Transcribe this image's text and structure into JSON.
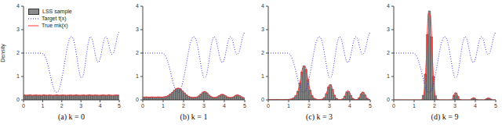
{
  "chart_data": [
    {
      "type": "histogram",
      "title": "(a) k = 0",
      "y_label": "Density",
      "legend": "top left",
      "name": "LSS sample",
      "color": "#8c8c8c",
      "bins": [
        0,
        0.1,
        0.2,
        0.3,
        0.4,
        0.5,
        0.6,
        0.7,
        0.8,
        0.9,
        1.0,
        1.1,
        1.2,
        1.3,
        1.4,
        1.5,
        1.6,
        1.7,
        1.8,
        1.9,
        2.0,
        2.1,
        2.2,
        2.3,
        2.4,
        2.5,
        2.6,
        2.7,
        2.8,
        2.9,
        3.0,
        3.1,
        3.2,
        3.3,
        3.4,
        3.5,
        3.6,
        3.7,
        3.8,
        3.9,
        4.0,
        4.1,
        4.2,
        4.3,
        4.4,
        4.5,
        4.6,
        4.7,
        4.8,
        4.9,
        5.0
      ],
      "counts": [
        0.21,
        0.19,
        0.2,
        0.22,
        0.18,
        0.2,
        0.21,
        0.19,
        0.2,
        0.18,
        0.22,
        0.2,
        0.19,
        0.21,
        0.2,
        0.18,
        0.2,
        0.22,
        0.19,
        0.2,
        0.21,
        0.2,
        0.18,
        0.2,
        0.21,
        0.19,
        0.2,
        0.22,
        0.2,
        0.18,
        0.2,
        0.21,
        0.19,
        0.2,
        0.22,
        0.2,
        0.19,
        0.21,
        0.2,
        0.18,
        0.2,
        0.21,
        0.2,
        0.19,
        0.22,
        0.2,
        0.18,
        0.2,
        0.21,
        0.2
      ],
      "x": [
        0,
        0.1,
        0.2,
        0.3,
        0.4,
        0.5,
        0.6,
        0.7,
        0.8,
        0.9,
        1.0,
        1.1,
        1.2,
        1.3,
        1.4,
        1.5,
        1.6,
        1.7,
        1.8,
        1.9,
        2.0,
        2.1,
        2.2,
        2.3,
        2.4,
        2.5,
        2.6,
        2.7,
        2.8,
        2.9,
        3.0,
        3.1,
        3.2,
        3.3,
        3.4,
        3.5,
        3.6,
        3.7,
        3.8,
        3.9,
        4.0,
        4.1,
        4.2,
        4.3,
        4.4,
        4.5,
        4.6,
        4.7,
        4.8,
        4.9,
        5.0
      ],
      "series": [
        {
          "name": "Target f(x)",
          "type": "line",
          "color": "#3333ff",
          "line_style": "dotted",
          "values": [
            2,
            2,
            2,
            2,
            2,
            2,
            2,
            2,
            2,
            2,
            1.98,
            1.9,
            1.7,
            1.4,
            1.05,
            0.7,
            0.45,
            0.32,
            0.35,
            0.55,
            0.9,
            1.35,
            1.85,
            2.3,
            2.6,
            2.7,
            2.6,
            2.25,
            1.75,
            1.25,
            0.95,
            1.0,
            1.4,
            2.0,
            2.5,
            2.7,
            2.55,
            2.15,
            1.75,
            1.6,
            1.75,
            2.15,
            2.55,
            2.7,
            2.55,
            2.2,
            1.95,
            2.0,
            2.3,
            2.7,
            2.9
          ]
        },
        {
          "name": "True mk(x)",
          "type": "line",
          "color": "#ff3333",
          "line_style": "solid",
          "values": [
            0.2,
            0.2,
            0.2,
            0.2,
            0.2,
            0.2,
            0.2,
            0.2,
            0.2,
            0.2,
            0.2,
            0.2,
            0.2,
            0.2,
            0.2,
            0.2,
            0.2,
            0.2,
            0.2,
            0.2,
            0.2,
            0.2,
            0.2,
            0.2,
            0.2,
            0.2,
            0.2,
            0.2,
            0.2,
            0.2,
            0.2,
            0.2,
            0.2,
            0.2,
            0.2,
            0.2,
            0.2,
            0.2,
            0.2,
            0.2,
            0.2,
            0.2,
            0.2,
            0.2,
            0.2,
            0.2,
            0.2,
            0.2,
            0.2,
            0.2,
            0.2
          ]
        }
      ],
      "xlim": [
        0,
        5
      ],
      "xticks": [
        0,
        1,
        2,
        3,
        4,
        5
      ],
      "ylim": [
        0,
        4
      ],
      "yticks": [
        0,
        1,
        2,
        3,
        4
      ]
    },
    {
      "type": "histogram",
      "title": "(b) k = 1",
      "color": "#8c8c8c",
      "bins": [
        0,
        0.1,
        0.2,
        0.3,
        0.4,
        0.5,
        0.6,
        0.7,
        0.8,
        0.9,
        1.0,
        1.1,
        1.2,
        1.3,
        1.4,
        1.5,
        1.6,
        1.7,
        1.8,
        1.9,
        2.0,
        2.1,
        2.2,
        2.3,
        2.4,
        2.5,
        2.6,
        2.7,
        2.8,
        2.9,
        3.0,
        3.1,
        3.2,
        3.3,
        3.4,
        3.5,
        3.6,
        3.7,
        3.8,
        3.9,
        4.0,
        4.1,
        4.2,
        4.3,
        4.4,
        4.5,
        4.6,
        4.7,
        4.8,
        4.9,
        5.0
      ],
      "counts": [
        0.11,
        0.13,
        0.12,
        0.1,
        0.13,
        0.12,
        0.11,
        0.13,
        0.12,
        0.11,
        0.13,
        0.15,
        0.18,
        0.25,
        0.32,
        0.41,
        0.48,
        0.5,
        0.46,
        0.38,
        0.29,
        0.21,
        0.15,
        0.12,
        0.1,
        0.11,
        0.12,
        0.17,
        0.25,
        0.33,
        0.36,
        0.3,
        0.21,
        0.14,
        0.11,
        0.1,
        0.13,
        0.18,
        0.23,
        0.23,
        0.18,
        0.13,
        0.1,
        0.1,
        0.13,
        0.19,
        0.21,
        0.18,
        0.13,
        0.09
      ],
      "x": [
        0,
        0.1,
        0.2,
        0.3,
        0.4,
        0.5,
        0.6,
        0.7,
        0.8,
        0.9,
        1.0,
        1.1,
        1.2,
        1.3,
        1.4,
        1.5,
        1.6,
        1.7,
        1.8,
        1.9,
        2.0,
        2.1,
        2.2,
        2.3,
        2.4,
        2.5,
        2.6,
        2.7,
        2.8,
        2.9,
        3.0,
        3.1,
        3.2,
        3.3,
        3.4,
        3.5,
        3.6,
        3.7,
        3.8,
        3.9,
        4.0,
        4.1,
        4.2,
        4.3,
        4.4,
        4.5,
        4.6,
        4.7,
        4.8,
        4.9,
        5.0
      ],
      "series": [
        {
          "type": "line",
          "color": "#3333ff",
          "line_style": "dotted",
          "values": [
            2,
            2,
            2,
            2,
            2,
            2,
            2,
            2,
            2,
            2,
            1.98,
            1.9,
            1.7,
            1.4,
            1.05,
            0.7,
            0.45,
            0.32,
            0.35,
            0.55,
            0.9,
            1.35,
            1.85,
            2.3,
            2.6,
            2.7,
            2.6,
            2.25,
            1.75,
            1.25,
            0.95,
            1.0,
            1.4,
            2.0,
            2.5,
            2.7,
            2.55,
            2.15,
            1.75,
            1.6,
            1.75,
            2.15,
            2.55,
            2.7,
            2.55,
            2.2,
            1.95,
            2.0,
            2.3,
            2.7,
            2.9
          ]
        },
        {
          "type": "line",
          "color": "#ff3333",
          "line_style": "solid",
          "values": [
            0.12,
            0.12,
            0.12,
            0.12,
            0.12,
            0.12,
            0.12,
            0.12,
            0.12,
            0.12,
            0.12,
            0.13,
            0.16,
            0.21,
            0.28,
            0.37,
            0.45,
            0.5,
            0.49,
            0.43,
            0.34,
            0.25,
            0.18,
            0.13,
            0.11,
            0.1,
            0.11,
            0.14,
            0.2,
            0.29,
            0.35,
            0.34,
            0.26,
            0.17,
            0.12,
            0.1,
            0.11,
            0.15,
            0.21,
            0.24,
            0.21,
            0.15,
            0.11,
            0.1,
            0.11,
            0.16,
            0.21,
            0.2,
            0.15,
            0.11,
            0.08
          ]
        }
      ],
      "xlim": [
        0,
        5
      ],
      "xticks": [
        0,
        1,
        2,
        3,
        4,
        5
      ],
      "ylim": [
        0,
        4
      ],
      "yticks": [
        0,
        1,
        2,
        3,
        4
      ]
    },
    {
      "type": "histogram",
      "title": "(c) k = 3",
      "color": "#8c8c8c",
      "bins": [
        0,
        0.1,
        0.2,
        0.3,
        0.4,
        0.5,
        0.6,
        0.7,
        0.8,
        0.9,
        1.0,
        1.1,
        1.2,
        1.3,
        1.4,
        1.5,
        1.6,
        1.7,
        1.8,
        1.9,
        2.0,
        2.1,
        2.2,
        2.3,
        2.4,
        2.5,
        2.6,
        2.7,
        2.8,
        2.9,
        3.0,
        3.1,
        3.2,
        3.3,
        3.4,
        3.5,
        3.6,
        3.7,
        3.8,
        3.9,
        4.0,
        4.1,
        4.2,
        4.3,
        4.4,
        4.5,
        4.6,
        4.7,
        4.8,
        4.9,
        5.0
      ],
      "counts": [
        0,
        0.01,
        0.01,
        0.01,
        0.02,
        0.01,
        0.01,
        0.01,
        0.02,
        0.01,
        0.02,
        0.04,
        0.09,
        0.18,
        0.37,
        0.72,
        1.2,
        1.45,
        1.3,
        0.85,
        0.42,
        0.18,
        0.07,
        0.03,
        0.01,
        0.01,
        0.03,
        0.1,
        0.27,
        0.55,
        0.65,
        0.45,
        0.2,
        0.06,
        0.02,
        0.01,
        0.04,
        0.16,
        0.34,
        0.35,
        0.19,
        0.06,
        0.02,
        0.01,
        0.09,
        0.25,
        0.33,
        0.21,
        0.07,
        0.02
      ],
      "x": [
        0,
        0.1,
        0.2,
        0.3,
        0.4,
        0.5,
        0.6,
        0.7,
        0.8,
        0.9,
        1.0,
        1.1,
        1.2,
        1.3,
        1.4,
        1.5,
        1.6,
        1.7,
        1.8,
        1.9,
        2.0,
        2.1,
        2.2,
        2.3,
        2.4,
        2.5,
        2.6,
        2.7,
        2.8,
        2.9,
        3.0,
        3.1,
        3.2,
        3.3,
        3.4,
        3.5,
        3.6,
        3.7,
        3.8,
        3.9,
        4.0,
        4.1,
        4.2,
        4.3,
        4.4,
        4.5,
        4.6,
        4.7,
        4.8,
        4.9,
        5.0
      ],
      "series": [
        {
          "type": "line",
          "color": "#3333ff",
          "line_style": "dotted",
          "values": [
            2,
            2,
            2,
            2,
            2,
            2,
            2,
            2,
            2,
            2,
            1.98,
            1.9,
            1.7,
            1.4,
            1.05,
            0.7,
            0.45,
            0.32,
            0.35,
            0.55,
            0.9,
            1.35,
            1.85,
            2.3,
            2.6,
            2.7,
            2.6,
            2.25,
            1.75,
            1.25,
            0.95,
            1.0,
            1.4,
            2.0,
            2.5,
            2.7,
            2.55,
            2.15,
            1.75,
            1.6,
            1.75,
            2.15,
            2.55,
            2.7,
            2.55,
            2.2,
            1.95,
            2.0,
            2.3,
            2.7,
            2.9
          ]
        },
        {
          "type": "line",
          "color": "#ff3333",
          "line_style": "solid",
          "values": [
            0.01,
            0.01,
            0.01,
            0.01,
            0.01,
            0.01,
            0.01,
            0.01,
            0.01,
            0.01,
            0.02,
            0.03,
            0.06,
            0.12,
            0.25,
            0.5,
            0.95,
            1.4,
            1.45,
            1.1,
            0.6,
            0.28,
            0.1,
            0.04,
            0.02,
            0.01,
            0.02,
            0.05,
            0.15,
            0.4,
            0.65,
            0.6,
            0.3,
            0.1,
            0.03,
            0.01,
            0.02,
            0.07,
            0.25,
            0.4,
            0.28,
            0.1,
            0.03,
            0.01,
            0.03,
            0.15,
            0.33,
            0.3,
            0.12,
            0.03,
            0.01
          ]
        }
      ],
      "xlim": [
        0,
        5
      ],
      "xticks": [
        0,
        1,
        2,
        3,
        4,
        5
      ],
      "ylim": [
        0,
        4
      ],
      "yticks": [
        0,
        1,
        2,
        3,
        4
      ]
    },
    {
      "type": "histogram",
      "title": "(d) k = 9",
      "color": "#8c8c8c",
      "bins": [
        0,
        0.1,
        0.2,
        0.3,
        0.4,
        0.5,
        0.6,
        0.7,
        0.8,
        0.9,
        1.0,
        1.1,
        1.2,
        1.3,
        1.4,
        1.5,
        1.6,
        1.7,
        1.8,
        1.9,
        2.0,
        2.1,
        2.2,
        2.3,
        2.4,
        2.5,
        2.6,
        2.7,
        2.8,
        2.9,
        3.0,
        3.1,
        3.2,
        3.3,
        3.4,
        3.5,
        3.6,
        3.7,
        3.8,
        3.9,
        4.0,
        4.1,
        4.2,
        4.3,
        4.4,
        4.5,
        4.6,
        4.7,
        4.8,
        4.9,
        5.0
      ],
      "counts": [
        0,
        0,
        0,
        0,
        0,
        0,
        0,
        0,
        0,
        0,
        0,
        0,
        0,
        0,
        0.2,
        1.1,
        2.8,
        3.8,
        2.7,
        1.0,
        0.18,
        0.02,
        0,
        0,
        0,
        0,
        0,
        0,
        0,
        0.2,
        0.3,
        0.15,
        0.02,
        0,
        0,
        0,
        0,
        0,
        0.06,
        0.08,
        0.02,
        0,
        0,
        0,
        0,
        0.05,
        0.08,
        0.04,
        0,
        0
      ],
      "x": [
        0,
        0.1,
        0.2,
        0.3,
        0.4,
        0.5,
        0.6,
        0.7,
        0.8,
        0.9,
        1.0,
        1.1,
        1.2,
        1.3,
        1.4,
        1.5,
        1.6,
        1.7,
        1.8,
        1.9,
        2.0,
        2.1,
        2.2,
        2.3,
        2.4,
        2.5,
        2.6,
        2.7,
        2.8,
        2.9,
        3.0,
        3.1,
        3.2,
        3.3,
        3.4,
        3.5,
        3.6,
        3.7,
        3.8,
        3.9,
        4.0,
        4.1,
        4.2,
        4.3,
        4.4,
        4.5,
        4.6,
        4.7,
        4.8,
        4.9,
        5.0
      ],
      "series": [
        {
          "type": "line",
          "color": "#3333ff",
          "line_style": "dotted",
          "values": [
            2,
            2,
            2,
            2,
            2,
            2,
            2,
            2,
            2,
            2,
            1.98,
            1.9,
            1.7,
            1.4,
            1.05,
            0.7,
            0.45,
            0.32,
            0.35,
            0.55,
            0.9,
            1.35,
            1.85,
            2.3,
            2.6,
            2.7,
            2.6,
            2.25,
            1.75,
            1.25,
            0.95,
            1.0,
            1.4,
            2.0,
            2.5,
            2.7,
            2.55,
            2.15,
            1.75,
            1.6,
            1.75,
            2.15,
            2.55,
            2.7,
            2.55,
            2.2,
            1.95,
            2.0,
            2.3,
            2.7,
            2.9
          ]
        },
        {
          "type": "line",
          "color": "#ff3333",
          "line_style": "solid",
          "values": [
            0,
            0,
            0,
            0,
            0,
            0,
            0,
            0,
            0,
            0,
            0,
            0,
            0,
            0,
            0.05,
            0.4,
            1.8,
            3.7,
            3.6,
            1.7,
            0.35,
            0.04,
            0,
            0,
            0,
            0,
            0,
            0,
            0,
            0.08,
            0.3,
            0.25,
            0.05,
            0,
            0,
            0,
            0,
            0,
            0.03,
            0.1,
            0.05,
            0,
            0,
            0,
            0,
            0.02,
            0.08,
            0.07,
            0.01,
            0,
            0
          ]
        }
      ],
      "xlim": [
        0,
        5
      ],
      "xticks": [
        0,
        1,
        2,
        3,
        4,
        5
      ],
      "ylim": [
        0,
        4
      ],
      "yticks": [
        0,
        1,
        2,
        3,
        4
      ]
    }
  ]
}
